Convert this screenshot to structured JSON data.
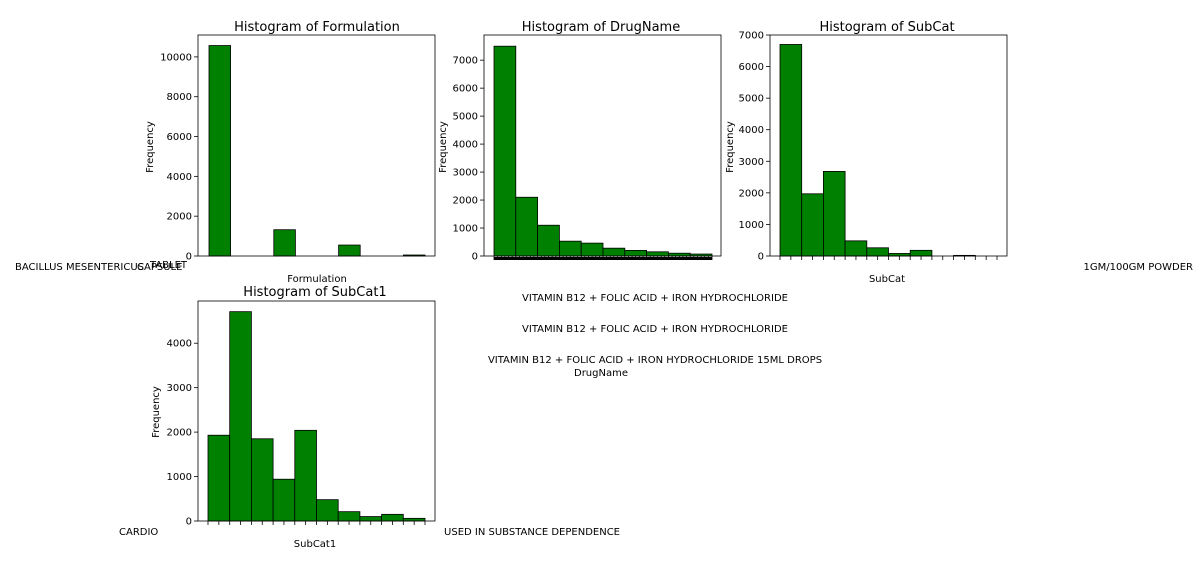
{
  "chart_data": [
    {
      "type": "bar",
      "title": "Histogram of Formulation",
      "xlabel": "Formulation",
      "ylabel": "Frequency",
      "ylim": [
        0,
        11100
      ],
      "yticks": [
        0,
        2000,
        4000,
        6000,
        8000,
        10000
      ],
      "bins": 10,
      "values": [
        10570,
        0,
        0,
        1320,
        0,
        0,
        550,
        0,
        0,
        50
      ],
      "visible_x_text": [
        "BACILLUS MESENTERICUS",
        "CAPSULE",
        "TABLET"
      ]
    },
    {
      "type": "bar",
      "title": "Histogram of DrugName",
      "xlabel": "DrugName",
      "ylabel": "Frequency",
      "ylim": [
        0,
        7900
      ],
      "yticks": [
        0,
        1000,
        2000,
        3000,
        4000,
        5000,
        6000,
        7000
      ],
      "bins": 10,
      "values": [
        7500,
        2100,
        1100,
        530,
        460,
        280,
        200,
        150,
        100,
        70
      ],
      "visible_x_text": [
        "VITAMIN B12 + FOLIC ACID + IRON HYDROCHLORIDE",
        "VITAMIN B12 + FOLIC ACID + IRON HYDROCHLORIDE",
        "VITAMIN B12 + FOLIC ACID + IRON HYDROCHLORIDE 15ML DROPS"
      ]
    },
    {
      "type": "bar",
      "title": "Histogram of SubCat",
      "xlabel": "SubCat",
      "ylabel": "Frequency",
      "ylim": [
        0,
        7000
      ],
      "yticks": [
        0,
        1000,
        2000,
        3000,
        4000,
        5000,
        6000,
        7000
      ],
      "bins": 10,
      "values": [
        6700,
        1970,
        2680,
        480,
        260,
        80,
        180,
        0,
        20,
        0
      ],
      "visible_x_text": [
        "1GM/100GM POWDER"
      ]
    },
    {
      "type": "bar",
      "title": "Histogram of SubCat1",
      "xlabel": "SubCat1",
      "ylabel": "Frequency",
      "ylim": [
        0,
        4950
      ],
      "yticks": [
        0,
        1000,
        2000,
        3000,
        4000
      ],
      "bins": 10,
      "values": [
        1930,
        4710,
        1850,
        940,
        2040,
        480,
        210,
        100,
        150,
        60
      ],
      "visible_x_text": [
        "CARDIO",
        "USED IN SUBSTANCE DEPENDENCE"
      ]
    }
  ]
}
